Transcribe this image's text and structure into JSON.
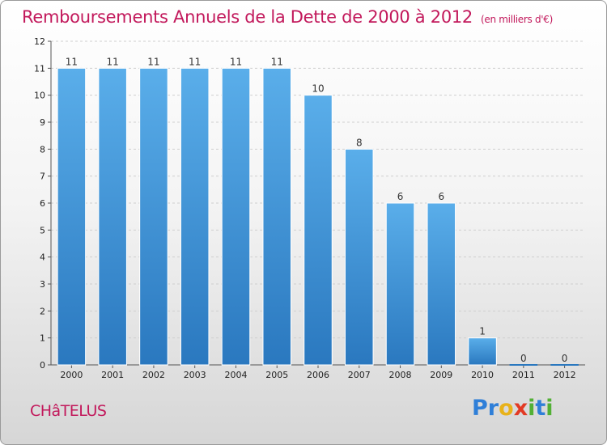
{
  "page": {
    "title": "Remboursements Annuels de la Dette de 2000 à 2012",
    "unit": "(en milliers d'€)",
    "city": "CHâTELUS",
    "logo_letters": [
      {
        "ch": "P",
        "color": "#2f7fd8"
      },
      {
        "ch": "r",
        "color": "#2f7fd8"
      },
      {
        "ch": "o",
        "color": "#e8b21a"
      },
      {
        "ch": "x",
        "color": "#e23a24"
      },
      {
        "ch": "i",
        "color": "#52b035"
      },
      {
        "ch": "t",
        "color": "#2f7fd8"
      },
      {
        "ch": "i",
        "color": "#52b035"
      }
    ]
  },
  "chart_data": {
    "type": "bar",
    "title": "Remboursements Annuels de la Dette de 2000 à 2012",
    "subtitle": "(en milliers d'€)",
    "categories": [
      "2000",
      "2001",
      "2002",
      "2003",
      "2004",
      "2005",
      "2006",
      "2007",
      "2008",
      "2009",
      "2010",
      "2011",
      "2012"
    ],
    "values": [
      11,
      11,
      11,
      11,
      11,
      11,
      10,
      8,
      6,
      6,
      1,
      0,
      0
    ],
    "value_labels": [
      "11",
      "11",
      "11",
      "11",
      "11",
      "11",
      "10",
      "8",
      "6",
      "6",
      "1",
      "0",
      "0"
    ],
    "ylim": [
      0,
      12
    ],
    "yticks": [
      0,
      1,
      2,
      3,
      4,
      5,
      6,
      7,
      8,
      9,
      10,
      11,
      12
    ],
    "grid": true,
    "bar_color_top": "#5aaeea",
    "bar_color_bottom": "#2a78bf"
  }
}
